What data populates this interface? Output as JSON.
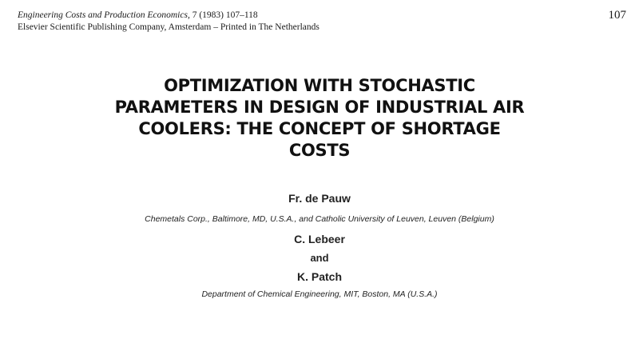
{
  "header": {
    "journal": "Engineering Costs and Production Economics,",
    "citation": " 7 (1983) 107–118",
    "publisher": "Elsevier Scientific Publishing Company, Amsterdam – Printed in The Netherlands",
    "page_number": "107"
  },
  "title_lines": [
    "OPTIMIZATION WITH STOCHASTIC",
    "PARAMETERS IN DESIGN OF INDUSTRIAL AIR",
    "COOLERS: THE CONCEPT OF SHORTAGE",
    "COSTS"
  ],
  "authors": [
    {
      "name": "Fr. de Pauw",
      "affiliation": "Chemetals Corp., Baltimore, MD, U.S.A., and Catholic University of Leuven, Leuven (Belgium)"
    },
    {
      "name": "C. Lebeer"
    },
    {
      "name": "K. Patch",
      "affiliation": "Department of Chemical Engineering, MIT, Boston, MA (U.S.A.)"
    }
  ],
  "conjunction": "and"
}
